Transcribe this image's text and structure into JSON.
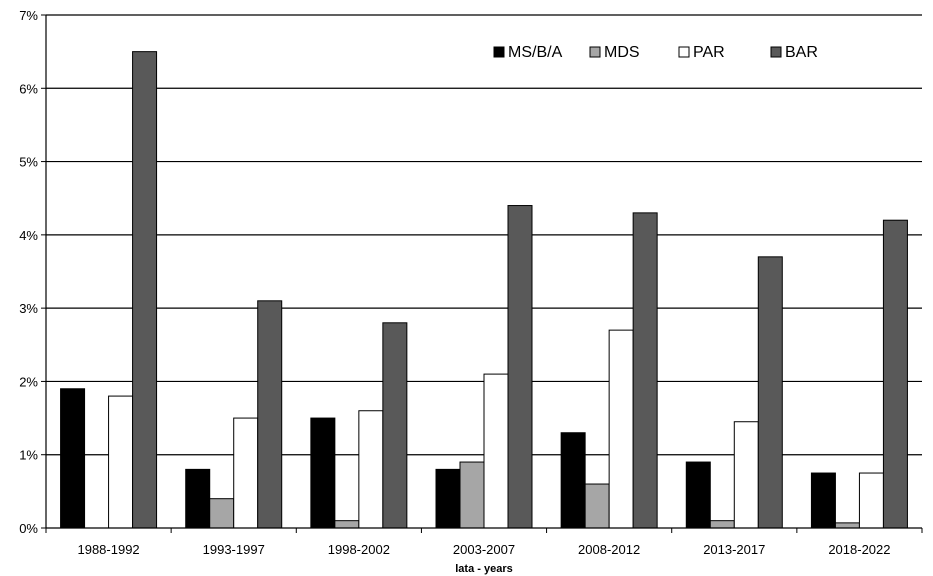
{
  "chart_data": {
    "type": "bar",
    "title": "",
    "xlabel": "lata - years",
    "ylabel": "",
    "categories": [
      "1988-1992",
      "1993-1997",
      "1998-2002",
      "2003-2007",
      "2008-2012",
      "2013-2017",
      "2018-2022"
    ],
    "series": [
      {
        "name": "MS/B/A",
        "color": "#000000",
        "values": [
          1.9,
          0.8,
          1.5,
          0.8,
          1.3,
          0.9,
          0.75
        ]
      },
      {
        "name": "MDS",
        "color": "#a6a6a6",
        "values": [
          0.0,
          0.4,
          0.1,
          0.9,
          0.6,
          0.1,
          0.07
        ]
      },
      {
        "name": "PAR",
        "color": "#ffffff",
        "values": [
          1.8,
          1.5,
          1.6,
          2.1,
          2.7,
          1.45,
          0.75
        ]
      },
      {
        "name": "BAR",
        "color": "#595959",
        "values": [
          6.5,
          3.1,
          2.8,
          4.4,
          4.3,
          3.7,
          4.2
        ]
      }
    ],
    "ylim": [
      0,
      7
    ],
    "y_ticks": [
      0,
      1,
      2,
      3,
      4,
      5,
      6,
      7
    ],
    "y_tick_labels": [
      "0%",
      "1%",
      "2%",
      "3%",
      "4%",
      "5%",
      "6%",
      "7%"
    ],
    "grid": true,
    "legend": {
      "position": "top-right",
      "orientation": "horizontal"
    }
  }
}
